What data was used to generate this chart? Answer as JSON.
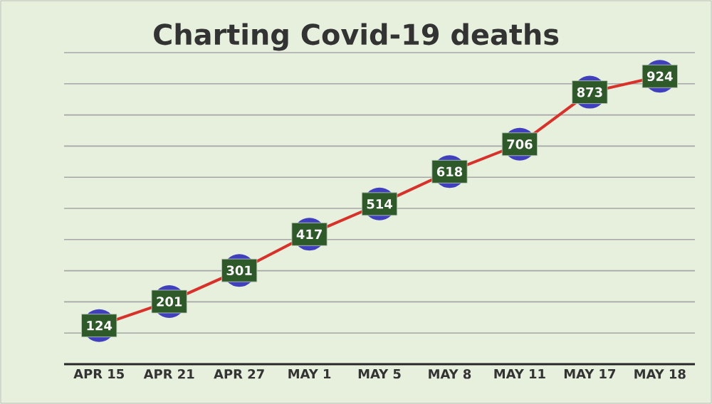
{
  "chart_data": {
    "type": "line",
    "title": "Charting Covid-19 deaths",
    "categories": [
      "APR 15",
      "APR 21",
      "APR 27",
      "MAY 1",
      "MAY 5",
      "MAY 8",
      "MAY 11",
      "MAY 17",
      "MAY 18"
    ],
    "values": [
      124,
      201,
      301,
      417,
      514,
      618,
      706,
      873,
      924
    ],
    "color": "#d9302a",
    "marker": "circle",
    "data_labels": true,
    "grid": "y",
    "tick_labels": "x",
    "ylim": [
      0,
      1000
    ],
    "yticks": [
      {
        "value": 0,
        "label": null
      },
      {
        "value": 100,
        "label": null
      },
      {
        "value": 200,
        "label": null
      },
      {
        "value": 300,
        "label": null
      },
      {
        "value": 400,
        "label": null
      },
      {
        "value": 500,
        "label": null
      },
      {
        "value": 600,
        "label": null
      },
      {
        "value": 700,
        "label": null
      },
      {
        "value": 800,
        "label": null
      },
      {
        "value": 900,
        "label": null
      },
      {
        "value": 1000,
        "label": null
      }
    ]
  }
}
